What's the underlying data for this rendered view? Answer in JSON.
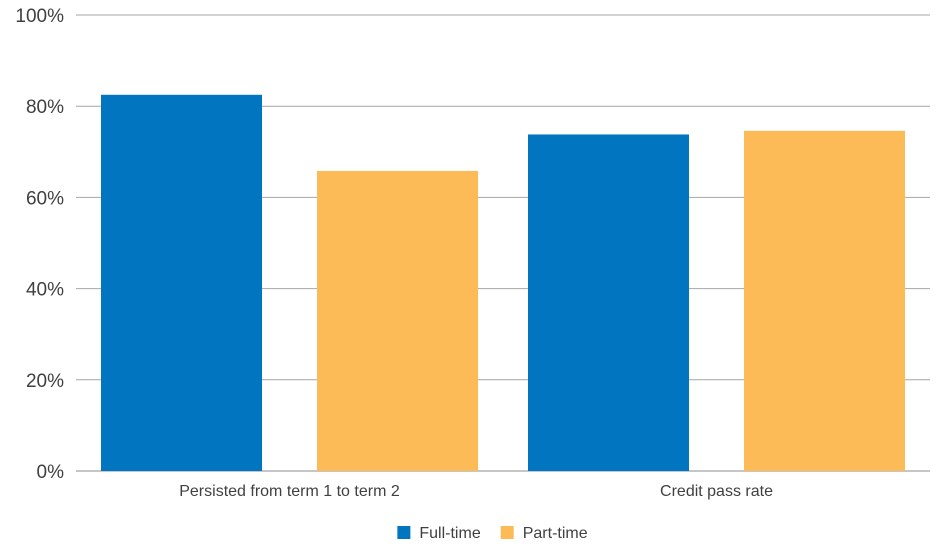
{
  "chart_data": {
    "type": "bar",
    "categories": [
      "Persisted from term 1 to term 2",
      "Credit pass rate"
    ],
    "series": [
      {
        "name": "Full-time",
        "values": [
          82.5,
          73.8
        ],
        "color": "#0175BF"
      },
      {
        "name": "Part-time",
        "values": [
          65.8,
          74.6
        ],
        "color": "#FDBB58"
      }
    ],
    "yticks": [
      {
        "value": 0,
        "label": "0%"
      },
      {
        "value": 20,
        "label": "20%"
      },
      {
        "value": 40,
        "label": "40%"
      },
      {
        "value": 60,
        "label": "60%"
      },
      {
        "value": 80,
        "label": "80%"
      },
      {
        "value": 100,
        "label": "100%"
      }
    ],
    "ylim": [
      0,
      100
    ],
    "grid": true,
    "legend_position": "bottom-center",
    "title": "",
    "xlabel": "",
    "ylabel": ""
  }
}
